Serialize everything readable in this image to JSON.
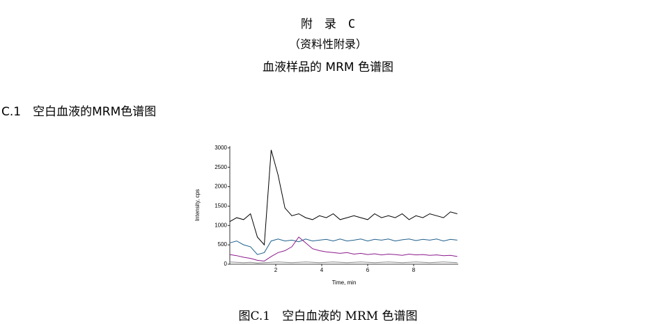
{
  "header": {
    "appendix": "附　录　C",
    "note": "（资料性附录）",
    "title": "血液样品的 MRM 色谱图"
  },
  "section": {
    "heading": "C.1　空白血液的MRM色谱图"
  },
  "figure": {
    "caption": "图C.1　空白血液的 MRM 色谱图"
  },
  "chart_data": {
    "type": "line",
    "x_label": "Time, min",
    "y_label": "Intensity, cps",
    "xlim": [
      0,
      9.94
    ],
    "ylim": [
      0,
      3050
    ],
    "xticks": [
      2,
      4,
      6,
      8
    ],
    "yticks": [
      0,
      500,
      1000,
      1500,
      2000,
      2500,
      3000
    ],
    "x": [
      0,
      0.3,
      0.6,
      0.9,
      1.2,
      1.5,
      1.8,
      2.1,
      2.4,
      2.7,
      3.0,
      3.3,
      3.6,
      3.9,
      4.2,
      4.5,
      4.8,
      5.1,
      5.4,
      5.7,
      6.0,
      6.3,
      6.6,
      6.9,
      7.2,
      7.5,
      7.8,
      8.1,
      8.4,
      8.7,
      9.0,
      9.3,
      9.6,
      9.9
    ],
    "series": [
      {
        "color": "#000000",
        "values": [
          1100,
          1200,
          1150,
          1300,
          700,
          500,
          2950,
          2300,
          1450,
          1250,
          1300,
          1200,
          1150,
          1250,
          1200,
          1300,
          1150,
          1200,
          1250,
          1200,
          1150,
          1300,
          1200,
          1250,
          1200,
          1300,
          1150,
          1250,
          1200,
          1300,
          1250,
          1200,
          1350,
          1300
        ]
      },
      {
        "color": "#1f5f8b",
        "values": [
          550,
          600,
          500,
          450,
          250,
          300,
          600,
          650,
          600,
          620,
          580,
          650,
          600,
          620,
          640,
          600,
          650,
          600,
          620,
          650,
          600,
          640,
          620,
          650,
          600,
          630,
          650,
          610,
          640,
          620,
          650,
          600,
          640,
          620
        ]
      },
      {
        "color": "#8b1a8b",
        "values": [
          250,
          220,
          180,
          150,
          100,
          80,
          200,
          300,
          350,
          450,
          700,
          550,
          400,
          350,
          320,
          300,
          280,
          300,
          260,
          280,
          250,
          270,
          240,
          260,
          250,
          230,
          260,
          240,
          250,
          230,
          240,
          220,
          230,
          200
        ]
      },
      {
        "color": "#888888",
        "values": [
          60,
          50,
          40,
          50,
          30,
          40,
          50,
          60,
          50,
          40,
          50,
          60,
          50,
          40,
          50,
          60,
          50,
          40,
          50,
          60,
          50,
          40,
          50,
          60,
          50,
          40,
          50,
          60,
          50,
          40,
          50,
          60,
          50,
          40
        ]
      }
    ]
  }
}
